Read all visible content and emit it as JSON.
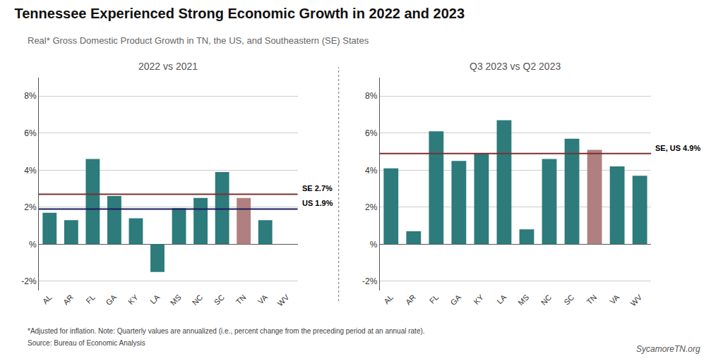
{
  "title": "Tennessee Experienced Strong Economic Growth in 2022 and 2023",
  "subtitle": "Real* Gross Domestic Product Growth in TN, the US, and Southeastern (SE) States",
  "annotations": [
    "*Adjusted for inflation. Note: Quarterly values are annualized (i.e., percent change from the preceding period at an annual rate).",
    "Source: Bureau of Economic Analysis",
    "SycamoreTN.org"
  ],
  "chart_data": [
    {
      "type": "bar",
      "title": "2022 vs 2021",
      "categories": [
        "AL",
        "AR",
        "FL",
        "GA",
        "KY",
        "LA",
        "MS",
        "NC",
        "SC",
        "TN",
        "VA",
        "WV"
      ],
      "values": [
        1.7,
        1.3,
        4.6,
        2.6,
        1.4,
        -1.5,
        1.95,
        2.5,
        3.9,
        2.5,
        1.3,
        0.0
      ],
      "colors": [
        "#2d7b7b",
        "#2d7b7b",
        "#2d7b7b",
        "#2d7b7b",
        "#2d7b7b",
        "#2d7b7b",
        "#2d7b7b",
        "#2d7b7b",
        "#2d7b7b",
        "#b08080",
        "#2d7b7b",
        "#2d7b7b"
      ],
      "reference_lines": [
        {
          "value": 2.7,
          "label": "SE 2.7%",
          "color": "#7b3030"
        },
        {
          "value": 1.9,
          "label": "US 1.9%",
          "color": "#1a1a5e"
        }
      ],
      "ylim": [
        -2.5,
        9.0
      ],
      "yticks": [
        {
          "value": -2,
          "label": "-2%"
        },
        {
          "value": 0,
          "label": "%"
        },
        {
          "value": 2,
          "label": "2%"
        },
        {
          "value": 4,
          "label": "4%"
        },
        {
          "value": 6,
          "label": "6%"
        },
        {
          "value": 8,
          "label": "8%"
        }
      ],
      "grid": true
    },
    {
      "type": "bar",
      "title": "Q3 2023 vs Q2 2023",
      "categories": [
        "AL",
        "AR",
        "FL",
        "GA",
        "KY",
        "LA",
        "MS",
        "NC",
        "SC",
        "TN",
        "VA",
        "WV"
      ],
      "values": [
        4.1,
        0.7,
        6.1,
        4.5,
        4.9,
        6.7,
        0.8,
        4.6,
        5.7,
        5.1,
        4.2,
        3.7
      ],
      "colors": [
        "#2d7b7b",
        "#2d7b7b",
        "#2d7b7b",
        "#2d7b7b",
        "#2d7b7b",
        "#2d7b7b",
        "#2d7b7b",
        "#2d7b7b",
        "#2d7b7b",
        "#b08080",
        "#2d7b7b",
        "#2d7b7b"
      ],
      "reference_lines": [
        {
          "value": 4.9,
          "label": "SE, US 4.9%",
          "color": "#7b3030"
        }
      ],
      "ylim": [
        -2.5,
        9.0
      ],
      "yticks": [
        {
          "value": -2,
          "label": "-2%"
        },
        {
          "value": 0,
          "label": "%"
        },
        {
          "value": 2,
          "label": "2%"
        },
        {
          "value": 4,
          "label": "4%"
        },
        {
          "value": 6,
          "label": "6%"
        },
        {
          "value": 8,
          "label": "8%"
        }
      ],
      "grid": true
    }
  ]
}
